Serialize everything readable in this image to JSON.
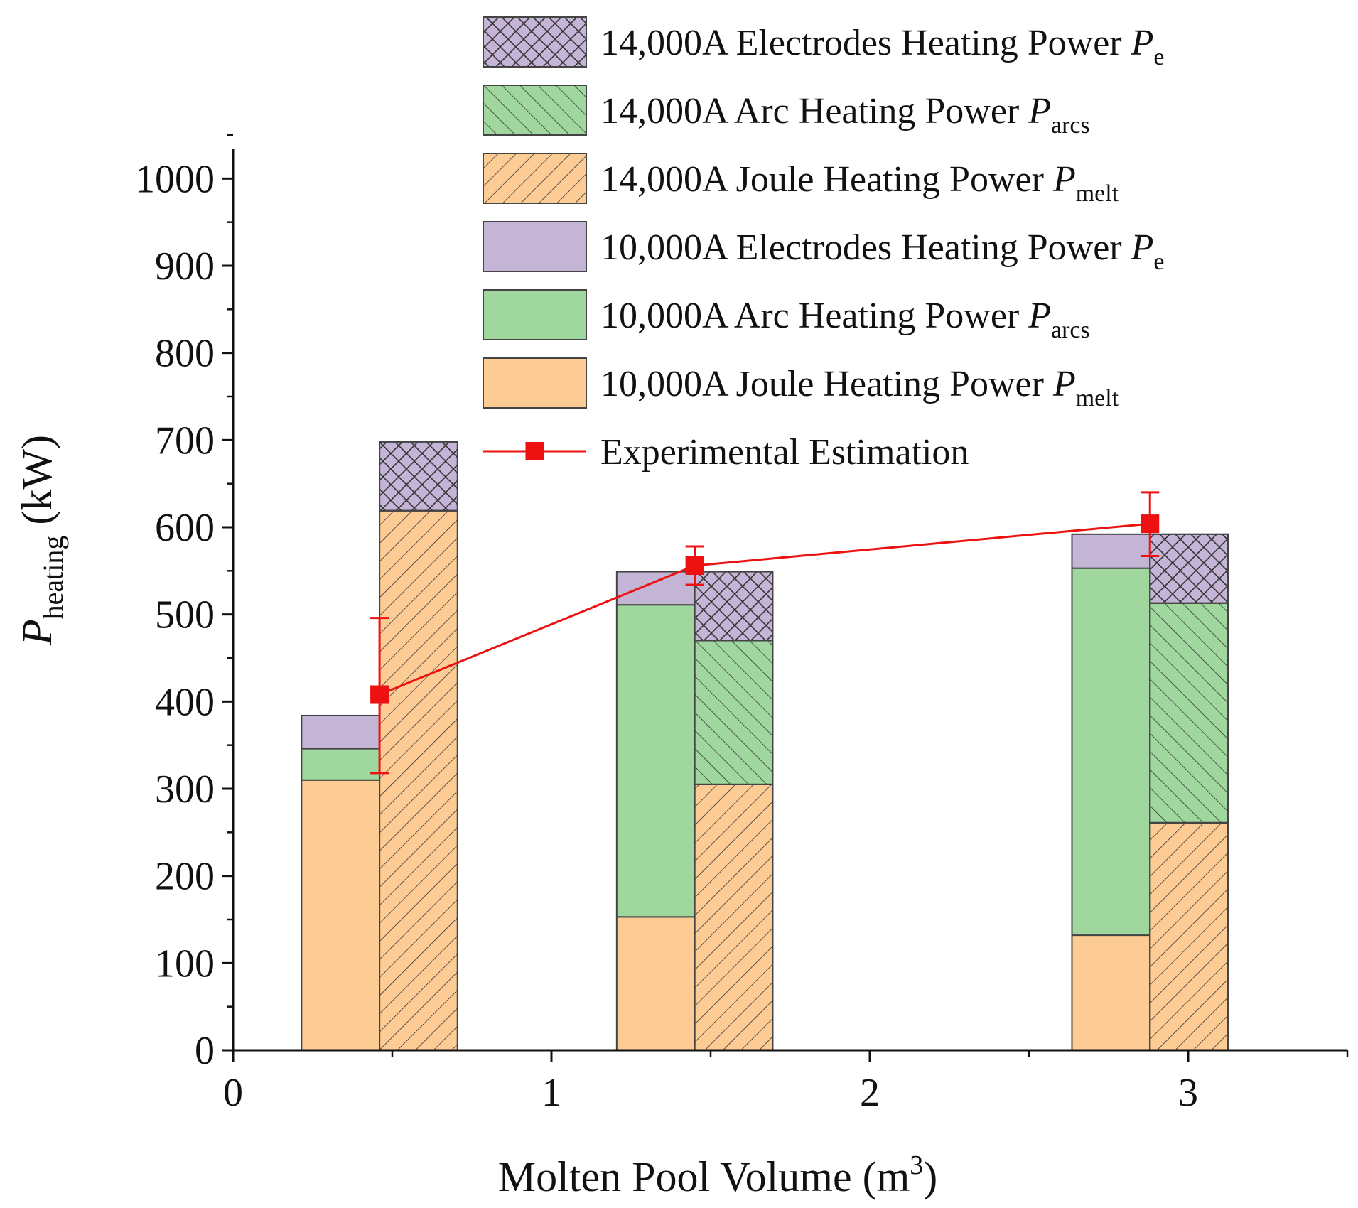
{
  "chart_data": {
    "type": "bar",
    "xlabel": "Molten Pool Volume (m",
    "xlabel_sup": "3",
    "xlabel_end": ")",
    "ylabel_main": "P",
    "ylabel_sub": "heating",
    "ylabel_unit": " (kW)",
    "xlim": [
      0,
      3.5
    ],
    "ylim": [
      0,
      1050
    ],
    "xticks": [
      "0",
      "1",
      "2",
      "3"
    ],
    "xtick_values": [
      0,
      1,
      2,
      3
    ],
    "yticks": [
      "0",
      "100",
      "200",
      "300",
      "400",
      "500",
      "600",
      "700",
      "800",
      "900",
      "1000"
    ],
    "ytick_values": [
      0,
      100,
      200,
      300,
      400,
      500,
      600,
      700,
      800,
      900,
      1000
    ],
    "groups": [
      {
        "x": 0.46,
        "bar_10000A": {
          "joule": 310,
          "arc": 36,
          "electrodes": 38
        },
        "bar_14000A": {
          "joule": 619,
          "arc": 0,
          "electrodes": 79
        },
        "experimental": {
          "value": 408,
          "err_low": 318,
          "err_high": 496
        }
      },
      {
        "x": 1.45,
        "bar_10000A": {
          "joule": 153,
          "arc": 358,
          "electrodes": 38
        },
        "bar_14000A": {
          "joule": 305,
          "arc": 165,
          "electrodes": 79
        },
        "experimental": {
          "value": 556,
          "err_low": 534,
          "err_high": 578
        }
      },
      {
        "x": 2.88,
        "bar_10000A": {
          "joule": 132,
          "arc": 421,
          "electrodes": 39
        },
        "bar_14000A": {
          "joule": 261,
          "arc": 252,
          "electrodes": 79
        },
        "experimental": {
          "value": 604,
          "err_low": 567,
          "err_high": 640
        }
      }
    ],
    "bar_width_data": 0.245,
    "legend": [
      {
        "label": "14,000A Electrodes Heating Power ",
        "symbol": "P",
        "sub": "e",
        "fill": "#c4b5d6",
        "pattern": "crosshatch"
      },
      {
        "label": "14,000A Arc Heating Power ",
        "symbol": "P",
        "sub": "arcs",
        "fill": "#9fd79f",
        "pattern": "backslash"
      },
      {
        "label": "14,000A Joule Heating Power ",
        "symbol": "P",
        "sub": "melt",
        "fill": "#fdcc95",
        "pattern": "slash"
      },
      {
        "label": "10,000A Electrodes Heating Power ",
        "symbol": "P",
        "sub": "e",
        "fill": "#c4b5d6",
        "pattern": "none"
      },
      {
        "label": "10,000A Arc Heating Power ",
        "symbol": "P",
        "sub": "arcs",
        "fill": "#9fd79f",
        "pattern": "none"
      },
      {
        "label": "10,000A Joule Heating Power ",
        "symbol": "P",
        "sub": "melt",
        "fill": "#fdcc95",
        "pattern": "none"
      },
      {
        "label": "Experimental Estimation",
        "symbol": "",
        "sub": "",
        "fill": "#ee1111",
        "pattern": "line-marker"
      }
    ],
    "colors": {
      "joule": "#fdcc95",
      "arc": "#9fd79f",
      "electrodes": "#c4b5d6",
      "experimental": "#ee1111",
      "outline": "#444444"
    }
  }
}
